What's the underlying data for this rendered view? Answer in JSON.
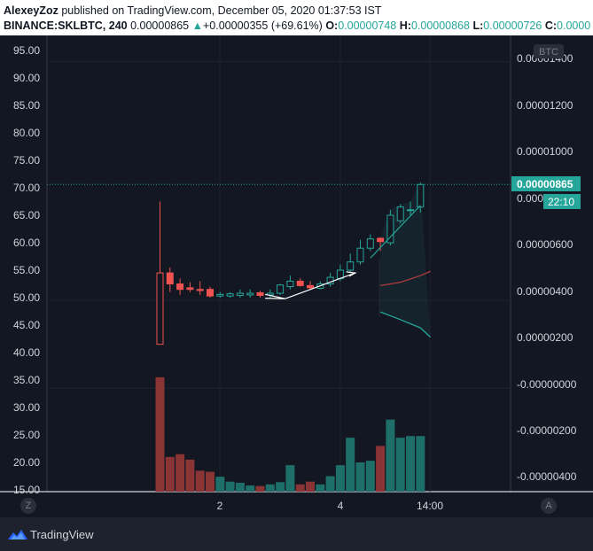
{
  "header": {
    "author": "AlexeyZoz",
    "published_text": "published on TradingView.com, December 05, 2020 01:37:53 IST",
    "symbol": "BINANCE:SKLBTC, 240",
    "price": "0.00000865",
    "change_arrow": "▲",
    "change": "+0.00000355 (+69.61%)",
    "o_label": "O:",
    "o_value": "0.00000748",
    "h_label": "H:",
    "h_value": "0.00000868",
    "l_label": "L:",
    "l_value": "0.00000726",
    "c_label": "C:",
    "c_value": "0.0000"
  },
  "left_axis": [
    "95.00",
    "90.00",
    "85.00",
    "80.00",
    "75.00",
    "70.00",
    "65.00",
    "60.00",
    "55.00",
    "50.00",
    "45.00",
    "40.00",
    "35.00",
    "30.00",
    "25.00",
    "20.00",
    "15.00"
  ],
  "right_axis": [
    "0.00001400",
    "0.00001200",
    "0.00001000",
    "0.00000800",
    "0.00000600",
    "0.00000400",
    "0.00000200",
    "-0.00000000",
    "-0.00000200",
    "-0.00000400"
  ],
  "currency_badge": "BTC",
  "price_label": "0.00000865",
  "countdown_label": "22:10",
  "time_axis": [
    "2",
    "4",
    "14:00"
  ],
  "axis_buttons": {
    "left": "Z",
    "right": "A"
  },
  "footer": {
    "brand": "TradingView"
  },
  "colors": {
    "up": "#26a69a",
    "down": "#ef5350",
    "background": "#131722",
    "vol_up": "#1e6f6a",
    "vol_down": "#8a3436"
  },
  "chart_data": {
    "type": "candlestick",
    "symbol": "BINANCE:SKLBTC",
    "interval": "240",
    "left_scale_ylim": [
      15,
      95
    ],
    "price_unit": "BTC",
    "candles": [
      {
        "o": 54.5,
        "h": 67.5,
        "l": 41.5,
        "c": 41.5
      },
      {
        "o": 54.5,
        "h": 55.5,
        "l": 51.0,
        "c": 52.5
      },
      {
        "o": 52.5,
        "h": 53.5,
        "l": 50.5,
        "c": 51.5
      },
      {
        "o": 51.8,
        "h": 52.8,
        "l": 51.0,
        "c": 51.5
      },
      {
        "o": 51.5,
        "h": 53.0,
        "l": 50.5,
        "c": 51.3
      },
      {
        "o": 51.5,
        "h": 52.0,
        "l": 50.0,
        "c": 50.3
      },
      {
        "o": 50.3,
        "h": 51.0,
        "l": 50.0,
        "c": 50.6
      },
      {
        "o": 50.3,
        "h": 51.0,
        "l": 50.0,
        "c": 50.7
      },
      {
        "o": 50.4,
        "h": 51.5,
        "l": 50.0,
        "c": 50.8
      },
      {
        "o": 50.5,
        "h": 51.5,
        "l": 50.0,
        "c": 50.8
      },
      {
        "o": 50.9,
        "h": 51.2,
        "l": 50.0,
        "c": 50.4
      },
      {
        "o": 50.5,
        "h": 51.5,
        "l": 50.0,
        "c": 50.8
      },
      {
        "o": 50.8,
        "h": 52.5,
        "l": 50.5,
        "c": 52.3
      },
      {
        "o": 52.0,
        "h": 54.0,
        "l": 51.5,
        "c": 53.0
      },
      {
        "o": 53.0,
        "h": 53.5,
        "l": 52.0,
        "c": 52.2
      },
      {
        "o": 52.2,
        "h": 53.0,
        "l": 51.5,
        "c": 51.8
      },
      {
        "o": 51.7,
        "h": 53.0,
        "l": 51.5,
        "c": 52.5
      },
      {
        "o": 52.5,
        "h": 54.5,
        "l": 52.0,
        "c": 53.7
      },
      {
        "o": 53.5,
        "h": 56.0,
        "l": 53.0,
        "c": 55.0
      },
      {
        "o": 55.0,
        "h": 58.0,
        "l": 54.5,
        "c": 56.5
      },
      {
        "o": 56.5,
        "h": 60.5,
        "l": 56.0,
        "c": 59.0
      },
      {
        "o": 59.0,
        "h": 61.5,
        "l": 58.5,
        "c": 60.7
      },
      {
        "o": 60.8,
        "h": 61.0,
        "l": 58.5,
        "c": 60.2
      },
      {
        "o": 60.0,
        "h": 66.0,
        "l": 59.5,
        "c": 65.0
      },
      {
        "o": 64.0,
        "h": 67.0,
        "l": 63.5,
        "c": 66.5
      },
      {
        "o": 66.0,
        "h": 67.5,
        "l": 65.0,
        "c": 66.0
      },
      {
        "o": 66.5,
        "h": 71.0,
        "l": 65.5,
        "c": 70.6
      }
    ],
    "volume": [
      35.5,
      21.0,
      21.5,
      20.5,
      18.5,
      18.3,
      17.4,
      16.5,
      16.3,
      15.8,
      15.7,
      16.0,
      16.4,
      19.5,
      16.0,
      16.5,
      16.0,
      17.5,
      19.5,
      24.5,
      20.0,
      20.3,
      23.0,
      27.8,
      24.5,
      24.8,
      24.8
    ],
    "last_price": 70.6,
    "ema_line": [
      [
        22,
        52.2
      ],
      [
        24,
        52.8
      ],
      [
        26,
        54.0
      ],
      [
        27,
        54.8
      ]
    ],
    "band_lower": [
      [
        22,
        47.4
      ],
      [
        24,
        46.0
      ],
      [
        26,
        44.5
      ],
      [
        27,
        42.8
      ]
    ]
  }
}
